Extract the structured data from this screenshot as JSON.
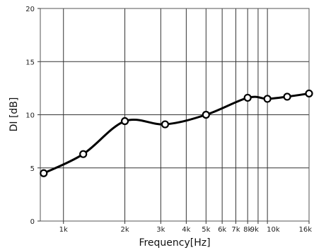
{
  "chart_data": {
    "type": "line",
    "xscale": "log",
    "xlim": [
      770,
      16000
    ],
    "ylim": [
      0,
      20
    ],
    "xlabel": "Frequency[Hz]",
    "ylabel": "DI [dB]",
    "grid": true,
    "x_ticks": [
      {
        "value": 1000,
        "label": "1k"
      },
      {
        "value": 2000,
        "label": "2k"
      },
      {
        "value": 3000,
        "label": "3k"
      },
      {
        "value": 4000,
        "label": "4k"
      },
      {
        "value": 5000,
        "label": "5k"
      },
      {
        "value": 6000,
        "label": "6k"
      },
      {
        "value": 7000,
        "label": "7k"
      },
      {
        "value": 8000,
        "label": "8k"
      },
      {
        "value": 9000,
        "label": "9k"
      },
      {
        "value": 10000,
        "label": "10k"
      },
      {
        "value": 16000,
        "label": "16k"
      }
    ],
    "y_ticks": [
      {
        "value": 0,
        "label": "0"
      },
      {
        "value": 5,
        "label": "5"
      },
      {
        "value": 10,
        "label": "10"
      },
      {
        "value": 15,
        "label": "15"
      },
      {
        "value": 20,
        "label": "20"
      }
    ],
    "series": [
      {
        "points": [
          {
            "x": 800,
            "y": 4.5
          },
          {
            "x": 1250,
            "y": 6.3
          },
          {
            "x": 2000,
            "y": 9.4
          },
          {
            "x": 3150,
            "y": 9.1
          },
          {
            "x": 5000,
            "y": 10.0
          },
          {
            "x": 8000,
            "y": 11.6
          },
          {
            "x": 10000,
            "y": 11.5
          },
          {
            "x": 12500,
            "y": 11.7
          },
          {
            "x": 16000,
            "y": 12.0
          }
        ]
      }
    ]
  }
}
